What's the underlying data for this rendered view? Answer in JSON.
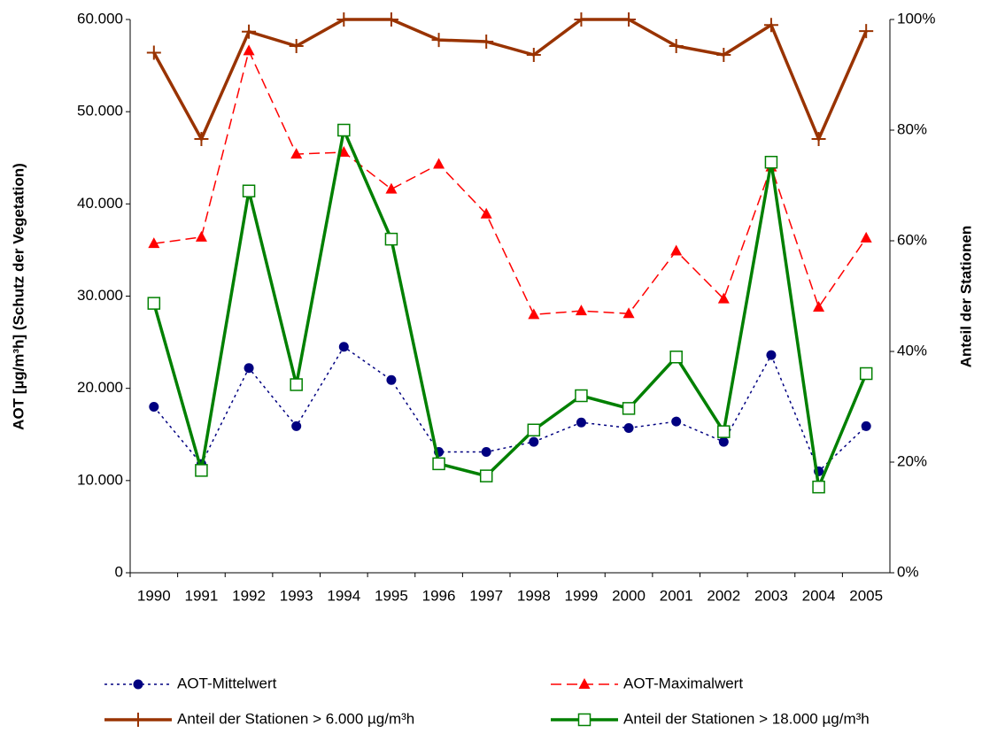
{
  "chart_data": {
    "type": "line",
    "y_label": "AOT [µg/m³h] (Schutz der Vegetation)",
    "y2_label": "Anteil der Stationen",
    "categories": [
      "1990",
      "1991",
      "1992",
      "1993",
      "1994",
      "1995",
      "1996",
      "1997",
      "1998",
      "1999",
      "2000",
      "2001",
      "2002",
      "2003",
      "2004",
      "2005"
    ],
    "ylim": [
      0,
      60000
    ],
    "yticks": [
      0,
      {
        "value": 10000,
        "label": "10.000"
      },
      {
        "value": 20000,
        "label": "20.000"
      },
      {
        "value": 30000,
        "label": "30.000"
      },
      {
        "value": 40000,
        "label": "40.000"
      },
      {
        "value": 50000,
        "label": "50.000"
      },
      {
        "value": 60000,
        "label": "60.000"
      }
    ],
    "y2lim": [
      0,
      100
    ],
    "y2ticks": [
      {
        "value": 0,
        "label": "0%"
      },
      {
        "value": 20,
        "label": "20%"
      },
      {
        "value": 40,
        "label": "40%"
      },
      {
        "value": 60,
        "label": "60%"
      },
      {
        "value": 80,
        "label": "80%"
      },
      {
        "value": 100,
        "label": "100%"
      }
    ],
    "grid": false,
    "legend": "bottom",
    "series": [
      {
        "name": "AOT-Mittelwert",
        "color": "#000080",
        "marker": "circle",
        "line_style": "dotted",
        "values": [
          18000,
          11800,
          22200,
          15900,
          24500,
          20900,
          13100,
          13100,
          14200,
          16300,
          15700,
          16400,
          14200,
          23600,
          11000,
          15900
        ]
      },
      {
        "name": "AOT-Maximalwert",
        "color": "#ff0000",
        "marker": "triangle",
        "line_style": "dashed",
        "values": [
          35700,
          36400,
          56600,
          45400,
          45600,
          41600,
          44300,
          38900,
          28000,
          28400,
          28100,
          34900,
          29700,
          44000,
          28800,
          36300
        ]
      },
      {
        "name": "Anteil der Stationen > 6.000 µg/m³h",
        "color": "#993300",
        "marker": "plus",
        "line_style": "solid",
        "axis": "y2",
        "values": [
          94,
          78.4,
          97.8,
          95.2,
          100,
          100,
          96.3,
          96,
          93.6,
          100,
          100,
          95.2,
          93.6,
          99,
          78.4,
          97.9
        ]
      },
      {
        "name": "Anteil der Stationen > 18.000 µg/m³h",
        "color": "#008000",
        "marker": "square",
        "line_style": "solid",
        "axis": "y2",
        "values": [
          48.7,
          18.5,
          69,
          34,
          80,
          60.3,
          19.7,
          17.5,
          25.8,
          32,
          29.7,
          39,
          25.5,
          74.2,
          15.5,
          36
        ]
      }
    ]
  }
}
